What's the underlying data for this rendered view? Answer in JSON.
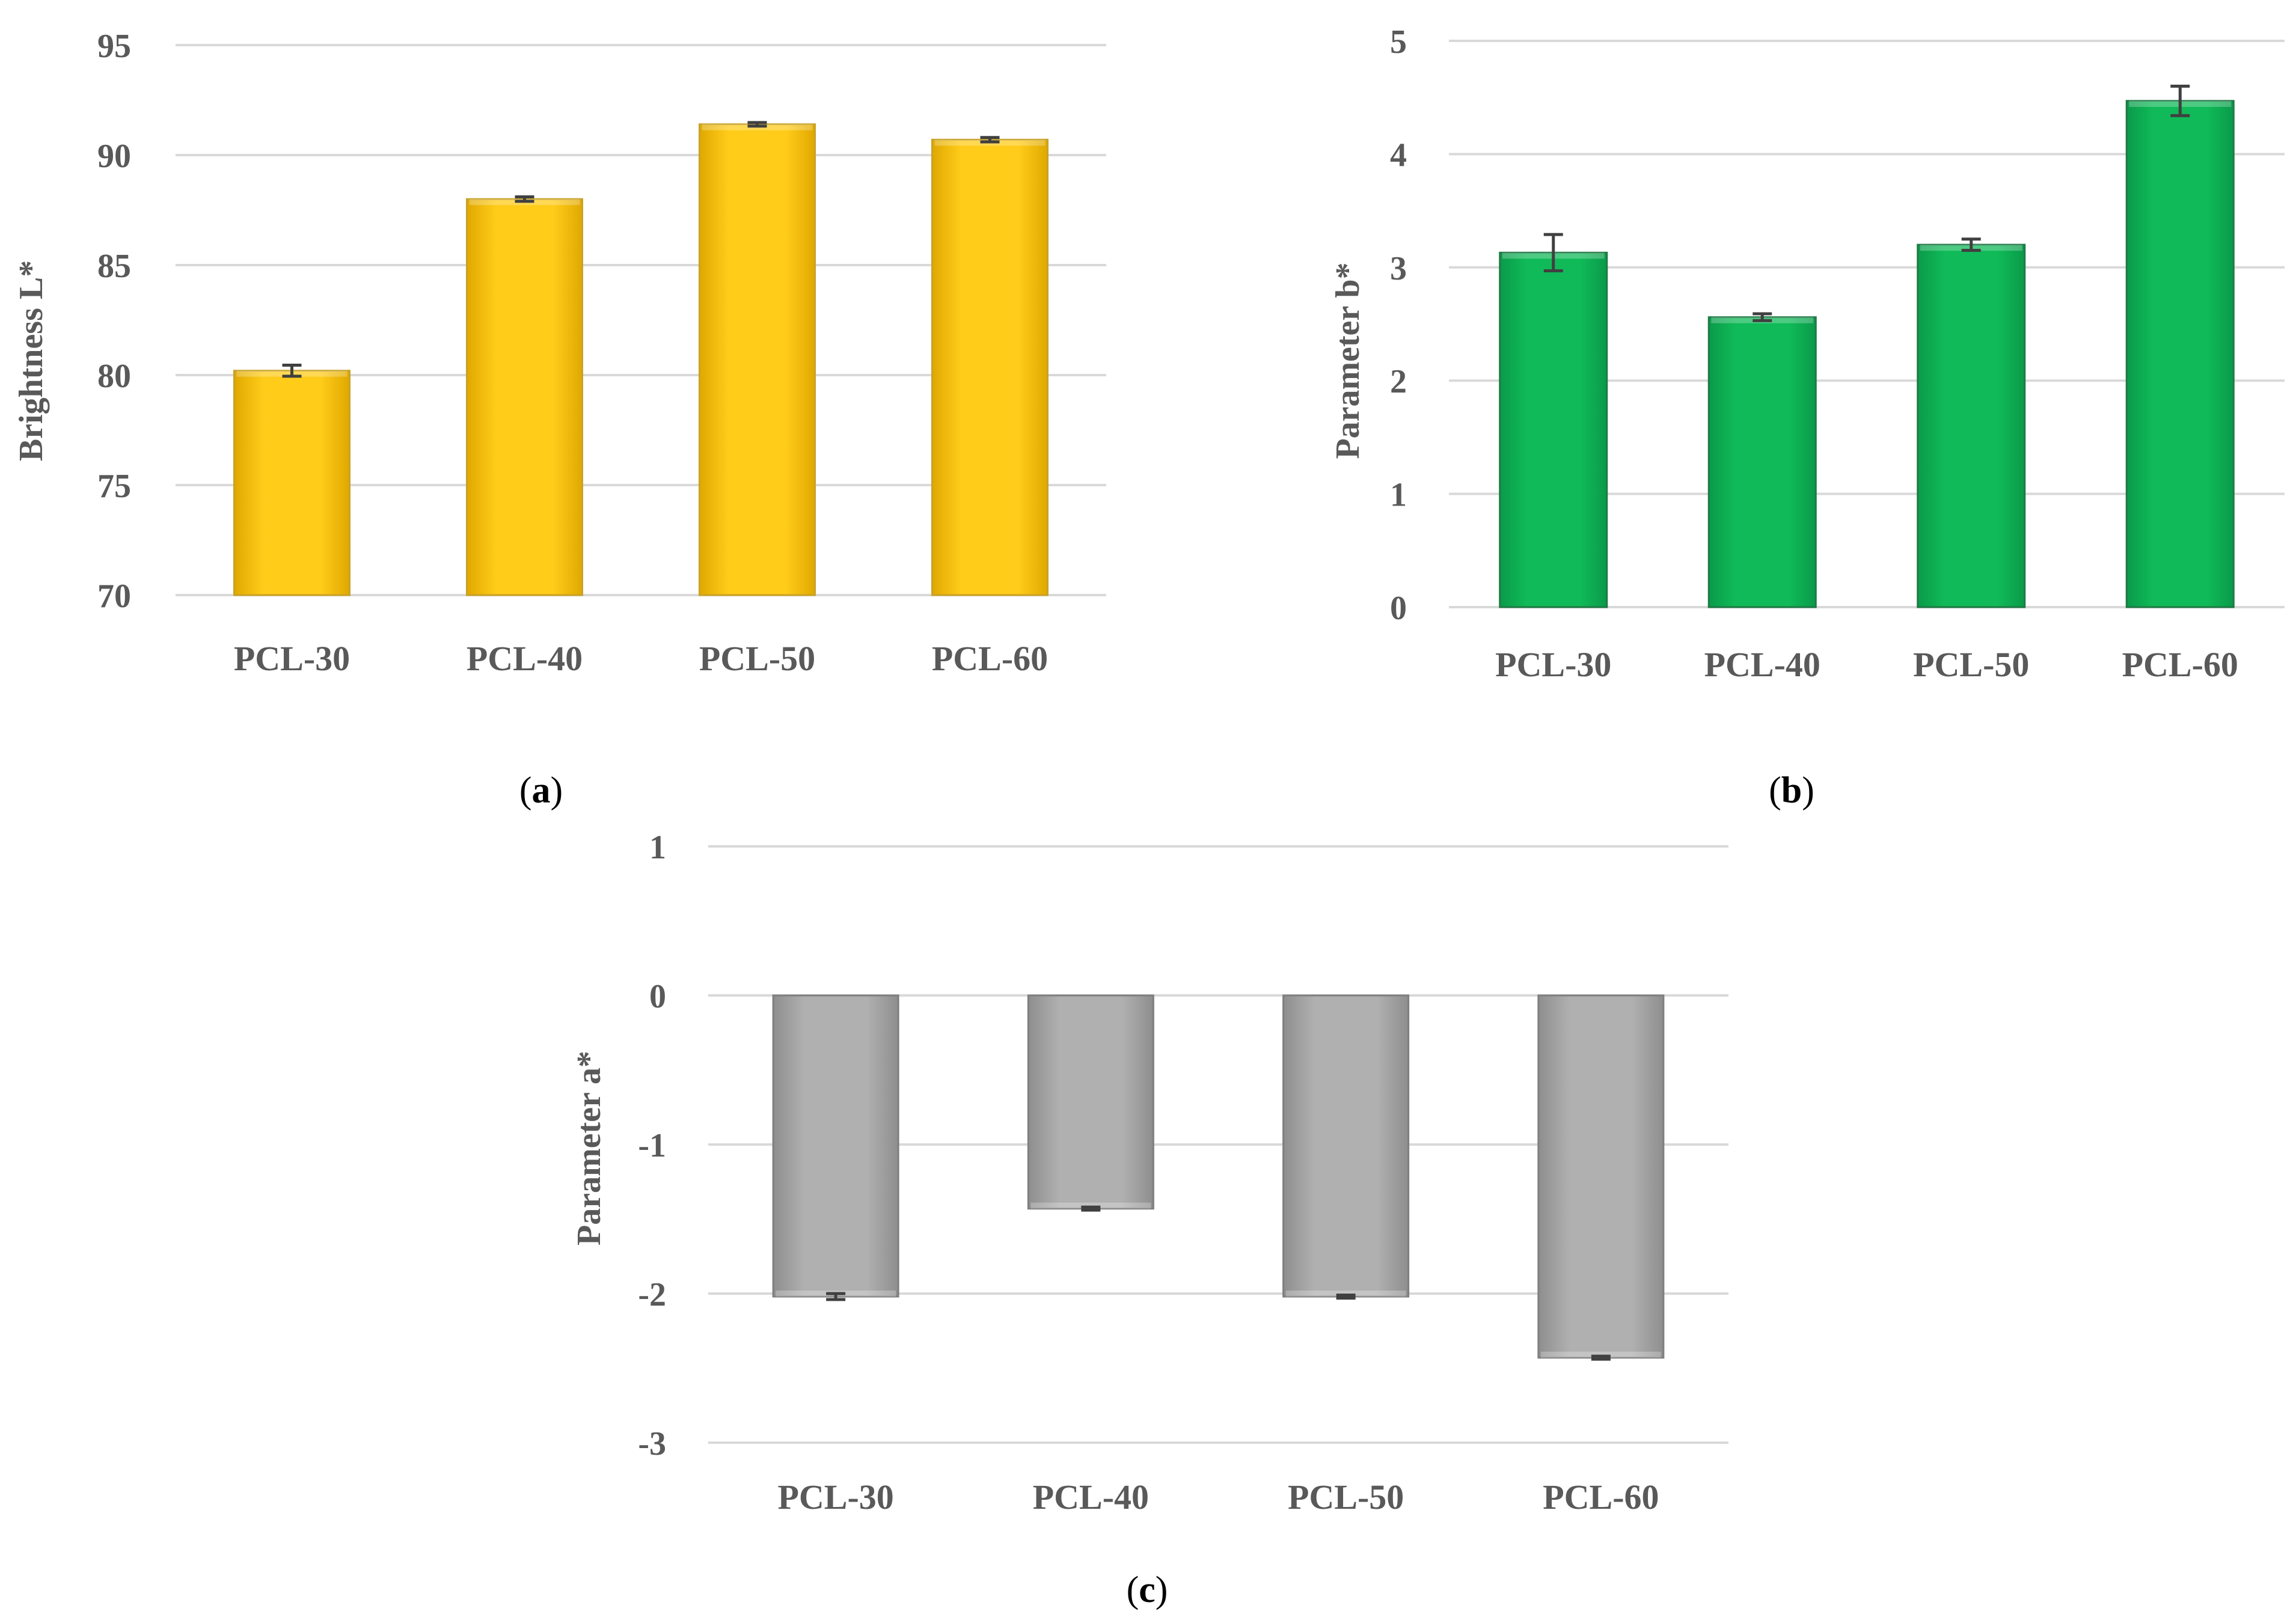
{
  "chart_data": [
    {
      "id": "a",
      "type": "bar",
      "panel_label": "a",
      "ylabel": "Brightness L*",
      "xlabel": "",
      "categories": [
        "PCL-30",
        "PCL-40",
        "PCL-50",
        "PCL-60"
      ],
      "values": [
        80.2,
        88.0,
        91.4,
        90.7
      ],
      "errors": [
        0.25,
        0.1,
        0.08,
        0.1
      ],
      "ylim": [
        70,
        95
      ],
      "yticks": [
        70,
        75,
        80,
        85,
        90,
        95
      ],
      "grid": true,
      "bar_color": "#FFC000",
      "bar_edge": "#C9A227"
    },
    {
      "id": "b",
      "type": "bar",
      "panel_label": "b",
      "ylabel": "Parameter b*",
      "xlabel": "",
      "categories": [
        "PCL-30",
        "PCL-40",
        "PCL-50",
        "PCL-60"
      ],
      "values": [
        3.13,
        2.56,
        3.2,
        4.47
      ],
      "errors": [
        0.16,
        0.03,
        0.05,
        0.13
      ],
      "ylim": [
        0,
        5
      ],
      "yticks": [
        0,
        1,
        2,
        3,
        4,
        5
      ],
      "grid": true,
      "bar_color": "#00B050",
      "bar_edge": "#1E7A45"
    },
    {
      "id": "c",
      "type": "bar",
      "panel_label": "c",
      "ylabel": "Parameter a*",
      "xlabel": "",
      "categories": [
        "PCL-30",
        "PCL-40",
        "PCL-50",
        "PCL-60"
      ],
      "values": [
        -2.02,
        -1.43,
        -2.02,
        -2.43
      ],
      "errors": [
        0.02,
        0.01,
        0.01,
        0.01
      ],
      "ylim": [
        -3,
        1
      ],
      "yticks": [
        -3,
        -2,
        -1,
        0,
        1
      ],
      "grid": true,
      "bar_color": "#A6A6A6",
      "bar_edge": "#7F7F7F"
    }
  ]
}
